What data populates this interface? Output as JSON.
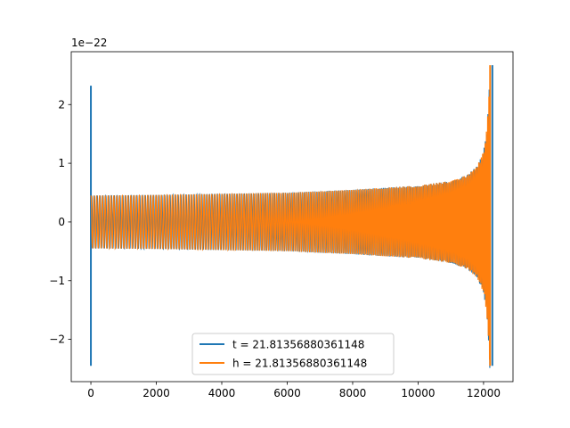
{
  "chart_data": {
    "type": "line",
    "title": "",
    "xlabel": "",
    "ylabel": "",
    "y_offset_label": "1e−22",
    "xlim": [
      -600,
      12900
    ],
    "ylim": [
      -2.72,
      2.9
    ],
    "xticks": [
      0,
      2000,
      4000,
      6000,
      8000,
      10000,
      12000
    ],
    "xtick_labels": [
      "0",
      "2000",
      "4000",
      "6000",
      "8000",
      "10000",
      "12000"
    ],
    "yticks": [
      -2,
      -1,
      0,
      1,
      2
    ],
    "ytick_labels": [
      "−2",
      "−1",
      "0",
      "1",
      "2"
    ],
    "grid": false,
    "legend_position": "bottom-center",
    "series": [
      {
        "name": "t = 21.81356880361148",
        "color": "#1f77b4",
        "description": "dense oscillation (chirp) with envelope growing from ~0.45 to ~2.6 (x1e-22); tall spikes at the start (x≈0) and end (x≈12270)",
        "envelope": {
          "x": [
            0,
            2000,
            4000,
            6000,
            8000,
            10000,
            11000,
            11500,
            11800,
            12000,
            12100,
            12150,
            12200
          ],
          "amp": [
            0.45,
            0.46,
            0.48,
            0.5,
            0.55,
            0.62,
            0.7,
            0.8,
            0.95,
            1.2,
            1.6,
            2.0,
            2.6
          ]
        },
        "spikes": [
          {
            "x": 0,
            "ymin": -2.45,
            "ymax": 2.32
          },
          {
            "x": 12270,
            "ymin": -2.45,
            "ymax": 2.67
          }
        ]
      },
      {
        "name": "h = 21.81356880361148",
        "color": "#ff7f0e",
        "description": "dense oscillation (chirp) overlaying the first series, envelope growing from ~0.45 to ~2.65 (x1e-22), ending near x≈12230",
        "envelope": {
          "x": [
            0,
            2000,
            4000,
            6000,
            8000,
            10000,
            11000,
            11500,
            11800,
            12000,
            12100,
            12150,
            12200
          ],
          "amp": [
            0.45,
            0.46,
            0.48,
            0.5,
            0.55,
            0.62,
            0.7,
            0.8,
            0.95,
            1.2,
            1.6,
            2.0,
            2.65
          ]
        },
        "spikes": [
          {
            "x": 12200,
            "ymin": -2.45,
            "ymax": 2.67
          }
        ]
      }
    ]
  }
}
